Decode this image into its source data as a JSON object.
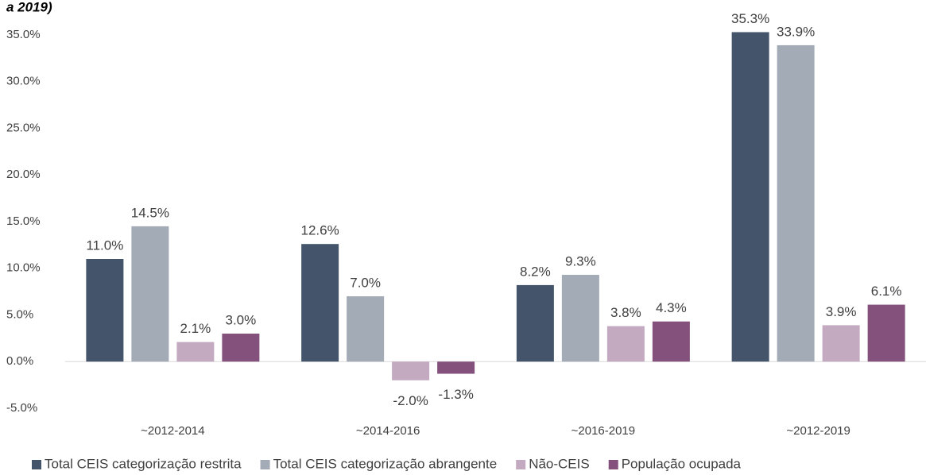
{
  "chart_data": {
    "type": "bar",
    "title": "a 2019)",
    "categories": [
      "~2012-2014",
      "~2014-2016",
      "~2016-2019",
      "~2012-2019"
    ],
    "series": [
      {
        "name": "Total CEIS categorização restrita",
        "color": "#44546a",
        "values": [
          11.0,
          12.6,
          8.2,
          35.3
        ],
        "value_labels": [
          "11.0%",
          "12.6%",
          "8.2%",
          "35.3%"
        ]
      },
      {
        "name": "Total CEIS categorização abrangente",
        "color": "#a3abb6",
        "values": [
          14.5,
          7.0,
          9.3,
          33.9
        ],
        "value_labels": [
          "14.5%",
          "7.0%",
          "9.3%",
          "33.9%"
        ]
      },
      {
        "name": "Não-CEIS",
        "color": "#c4aac1",
        "values": [
          2.1,
          -2.0,
          3.8,
          3.9
        ],
        "value_labels": [
          "2.1%",
          "-2.0%",
          "3.8%",
          "3.9%"
        ]
      },
      {
        "name": "População ocupada",
        "color": "#84517c",
        "values": [
          3.0,
          -1.3,
          4.3,
          6.1
        ],
        "value_labels": [
          "3.0%",
          "-1.3%",
          "4.3%",
          "6.1%"
        ]
      }
    ],
    "ylim": [
      -5,
      35
    ],
    "yticks": [
      {
        "value": -5,
        "label": "-5.0%"
      },
      {
        "value": 0,
        "label": "0.0%"
      },
      {
        "value": 5,
        "label": "5.0%"
      },
      {
        "value": 10,
        "label": "10.0%"
      },
      {
        "value": 15,
        "label": "15.0%"
      },
      {
        "value": 20,
        "label": "20.0%"
      },
      {
        "value": 25,
        "label": "25.0%"
      },
      {
        "value": 30,
        "label": "30.0%"
      },
      {
        "value": 35,
        "label": "35.0%"
      }
    ],
    "legend": "bottom"
  }
}
